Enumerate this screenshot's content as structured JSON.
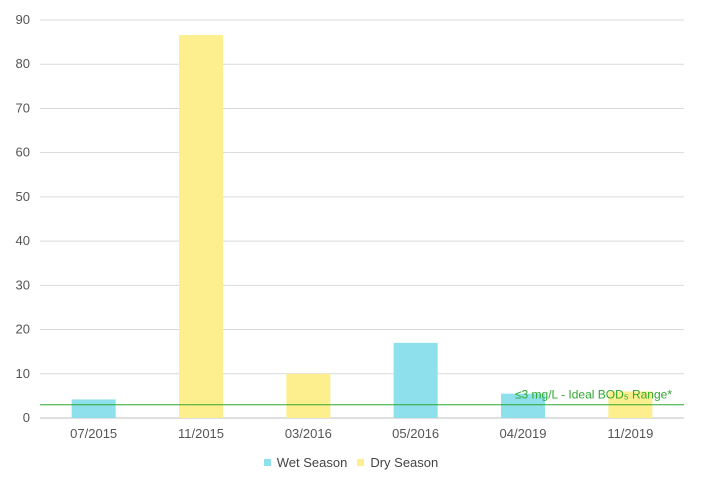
{
  "chart_data": {
    "type": "bar",
    "categories": [
      "07/2015",
      "11/2015",
      "03/2016",
      "05/2016",
      "04/2019",
      "11/2019"
    ],
    "values": [
      4.2,
      86.6,
      10.0,
      17.0,
      5.5,
      6.0
    ],
    "seasons": [
      "Wet Season",
      "Dry Season",
      "Dry Season",
      "Wet Season",
      "Wet Season",
      "Dry Season"
    ],
    "series": [
      {
        "name": "Wet Season",
        "color": "#8ee0ec"
      },
      {
        "name": "Dry Season",
        "color": "#fdee8e"
      }
    ],
    "ylim": [
      0,
      90
    ],
    "yticks": [
      0,
      10,
      20,
      30,
      40,
      50,
      60,
      70,
      80,
      90
    ],
    "grid": true,
    "legend_position": "bottom",
    "reference_line": {
      "value": 3,
      "label": "≤3 mg/L - Ideal BOD₅ Range*",
      "color": "#2fa82f"
    }
  }
}
